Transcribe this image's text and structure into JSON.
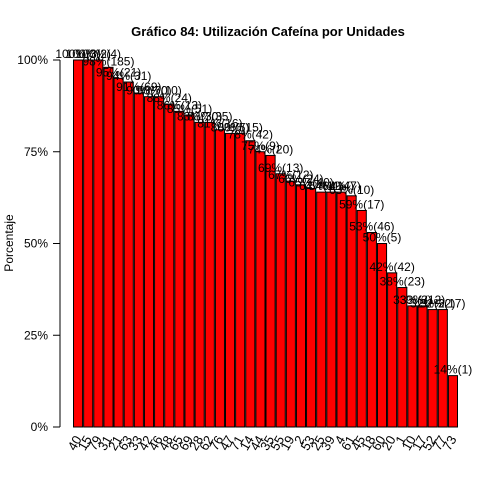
{
  "chart_data": {
    "type": "bar",
    "title": "Gráfico 84: Utilización Cafeína por  Unidades",
    "y_label": "Porcentaje",
    "categories": [
      "40",
      "15",
      "79",
      "31",
      "21",
      "63",
      "33",
      "42",
      "46",
      "48",
      "65",
      "69",
      "28",
      "62",
      "76",
      "47",
      "71",
      "14",
      "44",
      "35",
      "55",
      "19",
      "2",
      "53",
      "25",
      "39",
      "4",
      "61",
      "45",
      "18",
      "60",
      "20",
      "1",
      "10",
      "17",
      "52",
      "77",
      "73"
    ],
    "values": [
      100,
      100,
      100,
      98,
      95,
      94,
      91,
      90,
      90,
      88,
      86,
      85,
      83,
      83,
      81,
      80,
      80,
      78,
      75,
      74,
      69,
      67,
      66,
      65,
      64,
      64,
      64,
      63,
      59,
      53,
      50,
      42,
      38,
      33,
      33,
      32,
      32,
      14
    ],
    "value_labels": [
      "100%(3)",
      "100%(2)",
      "100%(4)",
      "98%(185)",
      "95%(21)",
      "94%(31)",
      "91%(69)",
      "90%(70)",
      "90%(10)",
      "88%(24)",
      "86%(13)",
      "85%(51)",
      "83%(30)",
      "83%(35)",
      "81%(16)",
      "80%(5)",
      "80%(15)",
      "78%(42)",
      "75%(9)",
      "74%(20)",
      "69%(13)",
      "67%(12)",
      "66%(24)",
      "65%(40)",
      "64%(11)",
      "64%(14)",
      "64%(7)",
      "63%(10)",
      "59%(17)",
      "53%(46)",
      "50%(5)",
      "42%(42)",
      "38%(23)",
      "33%(3)",
      "33%(12)",
      "32%(22)",
      "32%(17)",
      "14%(1)"
    ],
    "color": "#ff0000",
    "ylim": [
      0,
      100
    ],
    "yticks": [
      {
        "value": 0,
        "label": "0%"
      },
      {
        "value": 25,
        "label": "25%"
      },
      {
        "value": 50,
        "label": "50%"
      },
      {
        "value": 75,
        "label": "75%"
      },
      {
        "value": 100,
        "label": "100%"
      }
    ]
  }
}
